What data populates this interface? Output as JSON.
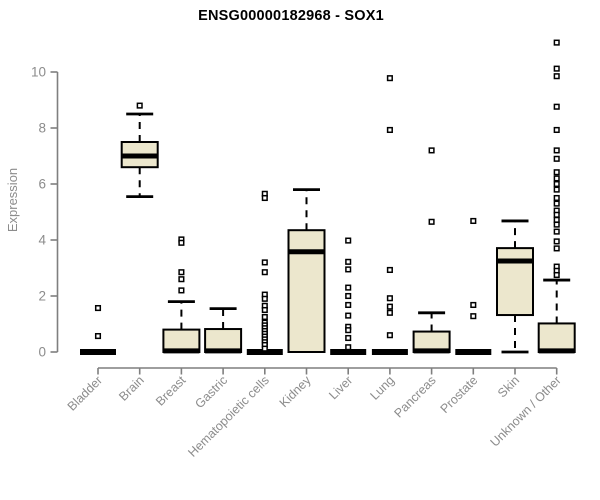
{
  "chart_data": {
    "type": "boxplot",
    "title": "ENSG00000182968 - SOX1",
    "xlabel": "",
    "ylabel": "Expression",
    "ylim": [
      0,
      11.2
    ],
    "yticks": [
      0,
      2,
      4,
      6,
      8,
      10
    ],
    "grid": false,
    "legend_position": "none",
    "colors": {
      "box_fill": "#ece7cd",
      "box_stroke": "#000000",
      "median": "#000000",
      "whisker": "#000000",
      "outlier_stroke": "#000000",
      "axis_line": "#7f7f7f",
      "tick_label": "#8c8c8c",
      "title": "#000000",
      "background": "#ffffff"
    },
    "categories": [
      "Bladder",
      "Brain",
      "Breast",
      "Gastric",
      "Hematopoietic cells",
      "Kidney",
      "Liver",
      "Lung",
      "Pancreas",
      "Prostate",
      "Skin",
      "Unknown / Other"
    ],
    "boxes": [
      {
        "category": "Bladder",
        "min": 0,
        "q1": 0,
        "median": 0,
        "q3": 0,
        "max": 0,
        "outliers": [
          1.57,
          0.57
        ]
      },
      {
        "category": "Brain",
        "min": 5.55,
        "q1": 6.6,
        "median": 7.0,
        "q3": 7.5,
        "max": 8.5,
        "outliers": [
          8.8
        ]
      },
      {
        "category": "Breast",
        "min": 0,
        "q1": 0,
        "median": 0.04,
        "q3": 0.8,
        "max": 1.8,
        "outliers": [
          4.02,
          3.9,
          2.85,
          2.6,
          2.2
        ]
      },
      {
        "category": "Gastric",
        "min": 0,
        "q1": 0,
        "median": 0.04,
        "q3": 0.82,
        "max": 1.55,
        "outliers": []
      },
      {
        "category": "Hematopoietic cells",
        "min": 0,
        "q1": 0,
        "median": 0,
        "q3": 0,
        "max": 0,
        "outliers": [
          5.65,
          5.5,
          3.2,
          2.85,
          2.05,
          1.9,
          1.65,
          1.5,
          1.25,
          1.05,
          0.95,
          0.85,
          0.75,
          0.65,
          0.55,
          0.45,
          0.35,
          0.25,
          0.12
        ]
      },
      {
        "category": "Kidney",
        "min": 0,
        "q1": 0,
        "median": 3.58,
        "q3": 4.35,
        "max": 5.8,
        "outliers": []
      },
      {
        "category": "Liver",
        "min": 0,
        "q1": 0,
        "median": 0,
        "q3": 0,
        "max": 0,
        "outliers": [
          3.98,
          3.22,
          2.95,
          2.3,
          2.0,
          1.68,
          1.3,
          0.9,
          0.78,
          0.5,
          0.17
        ]
      },
      {
        "category": "Lung",
        "min": 0,
        "q1": 0,
        "median": 0,
        "q3": 0,
        "max": 0,
        "outliers": [
          9.78,
          7.93,
          2.93,
          1.92,
          1.62,
          1.4,
          0.6
        ]
      },
      {
        "category": "Pancreas",
        "min": 0,
        "q1": 0,
        "median": 0.04,
        "q3": 0.73,
        "max": 1.4,
        "outliers": [
          7.2,
          4.65
        ]
      },
      {
        "category": "Prostate",
        "min": 0,
        "q1": 0,
        "median": 0,
        "q3": 0,
        "max": 0,
        "outliers": [
          4.68,
          1.68,
          1.28
        ]
      },
      {
        "category": "Skin",
        "min": 0,
        "q1": 1.32,
        "median": 3.25,
        "q3": 3.71,
        "max": 4.68,
        "outliers": []
      },
      {
        "category": "Unknown / Other",
        "min": 0,
        "q1": 0,
        "median": 0.04,
        "q3": 1.02,
        "max": 2.57,
        "outliers": [
          11.05,
          10.12,
          9.85,
          8.76,
          7.93,
          7.2,
          6.9,
          6.42,
          6.2,
          6.0,
          5.8,
          5.5,
          5.3,
          5.05,
          4.9,
          4.72,
          4.55,
          4.3,
          3.95,
          3.7,
          3.05,
          2.9,
          2.75
        ]
      }
    ]
  }
}
